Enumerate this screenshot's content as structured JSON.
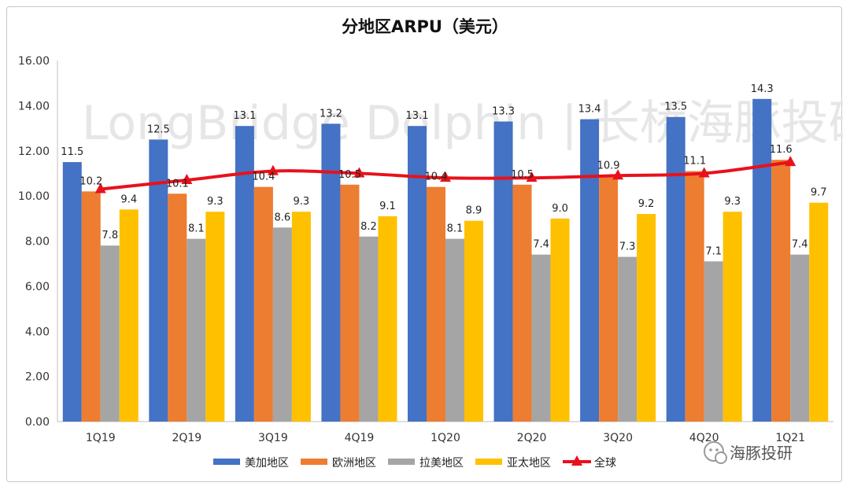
{
  "chart_data": {
    "type": "bar",
    "title": "分地区ARPU（美元）",
    "categories": [
      "1Q19",
      "2Q19",
      "3Q19",
      "4Q19",
      "1Q20",
      "2Q20",
      "3Q20",
      "4Q20",
      "1Q21"
    ],
    "ylim": [
      0,
      16
    ],
    "yticks": [
      "0.00",
      "2.00",
      "4.00",
      "6.00",
      "8.00",
      "10.00",
      "12.00",
      "14.00",
      "16.00"
    ],
    "grid": false,
    "legend_position": "bottom",
    "series": [
      {
        "name": "美加地区",
        "type": "bar",
        "color": "#4472C4",
        "values": [
          11.5,
          12.5,
          13.1,
          13.2,
          13.1,
          13.3,
          13.4,
          13.5,
          14.3
        ],
        "labels": [
          "11.5",
          "12.5",
          "13.1",
          "13.2",
          "13.1",
          "13.3",
          "13.4",
          "13.5",
          "14.3"
        ]
      },
      {
        "name": "欧洲地区",
        "type": "bar",
        "color": "#ED7D31",
        "values": [
          10.2,
          10.1,
          10.4,
          10.5,
          10.4,
          10.5,
          10.9,
          11.1,
          11.6
        ],
        "labels": [
          "10.2",
          "10.1",
          "10.4",
          "10.5",
          "10.4",
          "10.5",
          "10.9",
          "11.1",
          "11.6"
        ]
      },
      {
        "name": "拉美地区",
        "type": "bar",
        "color": "#A5A5A5",
        "values": [
          7.8,
          8.1,
          8.6,
          8.2,
          8.1,
          7.4,
          7.3,
          7.1,
          7.4
        ],
        "labels": [
          "7.8",
          "8.1",
          "8.6",
          "8.2",
          "8.1",
          "7.4",
          "7.3",
          "7.1",
          "7.4"
        ]
      },
      {
        "name": "亚太地区",
        "type": "bar",
        "color": "#FFC000",
        "values": [
          9.4,
          9.3,
          9.3,
          9.1,
          8.9,
          9.0,
          9.2,
          9.3,
          9.7
        ],
        "labels": [
          "9.4",
          "9.3",
          "9.3",
          "9.1",
          "8.9",
          "9.0",
          "9.2",
          "9.3",
          "9.7"
        ]
      },
      {
        "name": "全球",
        "type": "line",
        "color": "#E8111B",
        "values": [
          10.3,
          10.7,
          11.1,
          11.0,
          10.8,
          10.8,
          10.9,
          11.0,
          11.5
        ]
      }
    ]
  },
  "watermark": {
    "text": "LongBridge Dolphin | 长桥海豚投研",
    "badge": "海豚投研",
    "badge_icon": "wechat-icon"
  }
}
